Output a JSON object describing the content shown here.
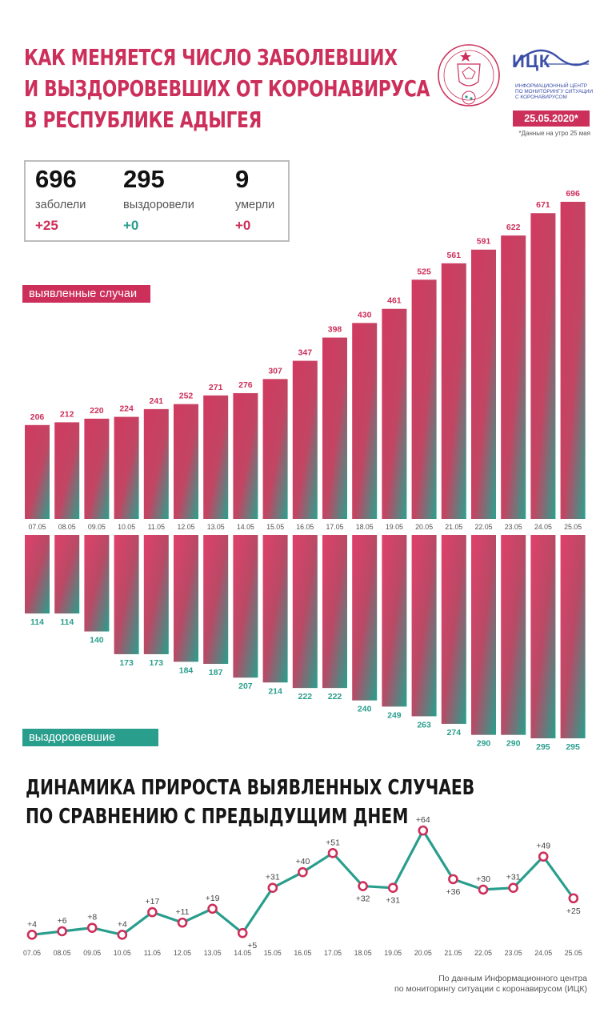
{
  "header": {
    "title_lines": [
      "КАК МЕНЯЕТСЯ ЧИСЛО ЗАБОЛЕВШИХ",
      "И ВЫЗДОРОВЕВШИХ ОТ КОРОНАВИРУСА",
      "В РЕСПУБЛИКЕ АДЫГЕЯ"
    ],
    "logo_name": "ИЦК",
    "logo_subtitle": "ИНФОРМАЦИОННЫЙ ЦЕНТР ПО МОНИТОРИНГУ СИТУАЦИИ С КОРОНАВИРУСОМ",
    "date": "25.05.2020*",
    "date_note": "*Данные на утро 25 мая",
    "emblem_icon": "adygea-coat-of-arms-icon"
  },
  "summary": {
    "infected": {
      "value": "696",
      "label": "заболели",
      "delta": "+25"
    },
    "recovered": {
      "value": "295",
      "label": "выздоровели",
      "delta": "+0"
    },
    "died": {
      "value": "9",
      "label": "умерли",
      "delta": "+0"
    }
  },
  "labels": {
    "cases": "выявленные случаи",
    "recovered": "выздоровевшие",
    "growth_title_lines": [
      "ДИНАМИКА ПРИРОСТА ВЫЯВЛЕННЫХ СЛУЧАЕВ",
      "ПО СРАВНЕНИЮ С ПРЕДЫДУЩИМ ДНЕМ"
    ],
    "source_lines": [
      "По данным Информационного центра",
      "по мониторингу ситуации с коронавирусом (ИЦК)"
    ]
  },
  "colors": {
    "brand_red": "#cc2f5a",
    "brand_teal": "#2a9e8d",
    "logo_blue": "#3c4fa8"
  },
  "chart_data": [
    {
      "type": "bar",
      "categories": [
        "07.05",
        "08.05",
        "09.05",
        "10.05",
        "11.05",
        "12.05",
        "13.05",
        "14.05",
        "15.05",
        "16.05",
        "17.05",
        "18.05",
        "19.05",
        "20.05",
        "21.05",
        "22.05",
        "23.05",
        "24.05",
        "25.05"
      ],
      "series": [
        {
          "name": "выявленные случаи",
          "values": [
            206,
            212,
            220,
            224,
            241,
            252,
            271,
            276,
            307,
            347,
            398,
            430,
            461,
            525,
            561,
            591,
            622,
            671,
            696
          ]
        }
      ],
      "ylim": [
        0,
        696
      ]
    },
    {
      "type": "bar",
      "categories": [
        "07.05",
        "08.05",
        "09.05",
        "10.05",
        "11.05",
        "12.05",
        "13.05",
        "14.05",
        "15.05",
        "16.05",
        "17.05",
        "18.05",
        "19.05",
        "20.05",
        "21.05",
        "22.05",
        "23.05",
        "24.05",
        "25.05"
      ],
      "series": [
        {
          "name": "выздоровевшие",
          "values": [
            114,
            114,
            140,
            173,
            173,
            184,
            187,
            207,
            214,
            222,
            222,
            240,
            249,
            263,
            274,
            290,
            290,
            295,
            295
          ]
        }
      ],
      "orientation": "downward"
    },
    {
      "type": "line",
      "categories": [
        "07.05",
        "08.05",
        "09.05",
        "10.05",
        "11.05",
        "12.05",
        "13.05",
        "14.05",
        "15.05",
        "16.05",
        "17.05",
        "18.05",
        "19.05",
        "20.05",
        "21.05",
        "22.05",
        "23.05",
        "24.05",
        "25.05"
      ],
      "series": [
        {
          "values": [
            4,
            6,
            8,
            4,
            17,
            11,
            19,
            5,
            31,
            40,
            51,
            32,
            31,
            64,
            36,
            30,
            31,
            49,
            25
          ]
        }
      ],
      "data_labels": [
        "+4",
        "+6",
        "+8",
        "+4",
        "+17",
        "+11",
        "+19",
        "+5",
        "+31",
        "+40",
        "+51",
        "+32",
        "+31",
        "+64",
        "+36",
        "+30",
        "+31",
        "+49",
        "+25"
      ]
    }
  ]
}
